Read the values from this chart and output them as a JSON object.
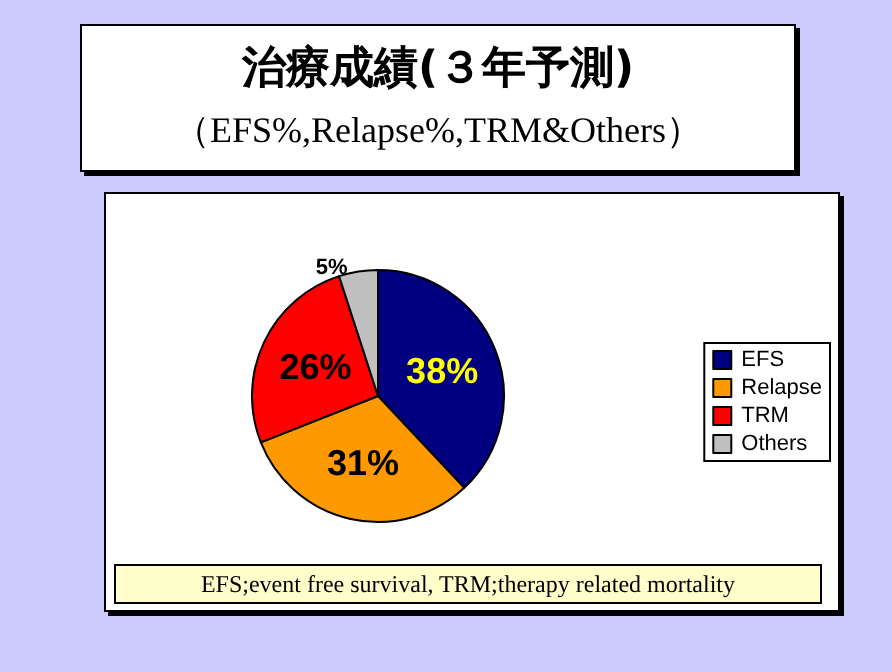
{
  "chart_data": {
    "type": "pie",
    "title": "治療成績(３年予測)",
    "subtitle": "（EFS%,Relapse%,TRM&Others）",
    "categories": [
      "EFS",
      "Relapse",
      "TRM",
      "Others"
    ],
    "values": [
      38,
      31,
      26,
      5
    ],
    "colors": [
      "#000080",
      "#ff9900",
      "#ff0000",
      "#c0c0c0"
    ],
    "value_labels": [
      "38%",
      "31%",
      "26%",
      "5%"
    ],
    "legend": "right",
    "annotations": [
      "EFS;event free survival,   TRM;therapy related mortality"
    ]
  }
}
